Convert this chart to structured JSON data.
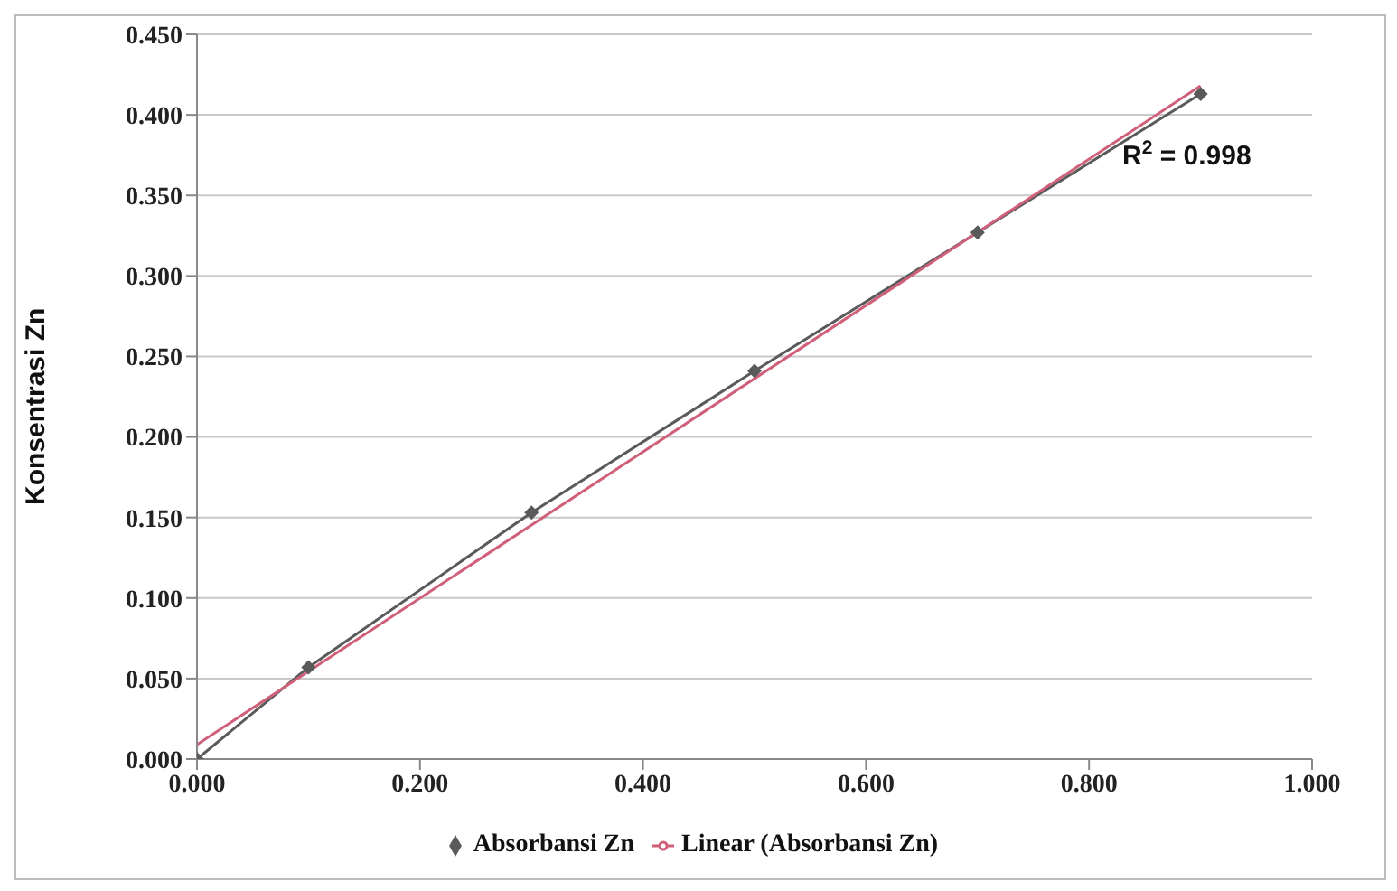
{
  "chart_data": {
    "type": "line",
    "ylabel": "Konsentrasi  Zn",
    "x": [
      0,
      0.1,
      0.3,
      0.5,
      0.7,
      0.9
    ],
    "series": [
      {
        "name": "Absorbansi Zn",
        "color": "#5a5a5a",
        "values": [
          0,
          0.057,
          0.153,
          0.241,
          0.327,
          0.413
        ],
        "marker": "diamond"
      },
      {
        "name": "Linear (Absorbansi Zn)",
        "type": "line",
        "color": "#d0607a",
        "x": [
          0,
          0.9
        ],
        "values": [
          0.009,
          0.418
        ],
        "marker": "none"
      }
    ],
    "xlim": [
      0,
      1
    ],
    "xticks": [
      {
        "value": 0,
        "label": "0.000"
      },
      {
        "value": 0.2,
        "label": "0.200"
      },
      {
        "value": 0.4,
        "label": "0.400"
      },
      {
        "value": 0.6,
        "label": "0.600"
      },
      {
        "value": 0.8,
        "label": "0.800"
      },
      {
        "value": 1,
        "label": "1.000"
      }
    ],
    "ylim": [
      0,
      0.45
    ],
    "yticks": [
      {
        "value": 0,
        "label": "0.000"
      },
      {
        "value": 0.05,
        "label": "0.050"
      },
      {
        "value": 0.1,
        "label": "0.100"
      },
      {
        "value": 0.15,
        "label": "0.150"
      },
      {
        "value": 0.2,
        "label": "0.200"
      },
      {
        "value": 0.25,
        "label": "0.250"
      },
      {
        "value": 0.3,
        "label": "0.300"
      },
      {
        "value": 0.35,
        "label": "0.350"
      },
      {
        "value": 0.4,
        "label": "0.400"
      },
      {
        "value": 0.45,
        "label": "0.450"
      }
    ],
    "grid": "y",
    "legend": "bottom",
    "annotations": [
      "R$^{2}$ = 0.998"
    ]
  }
}
